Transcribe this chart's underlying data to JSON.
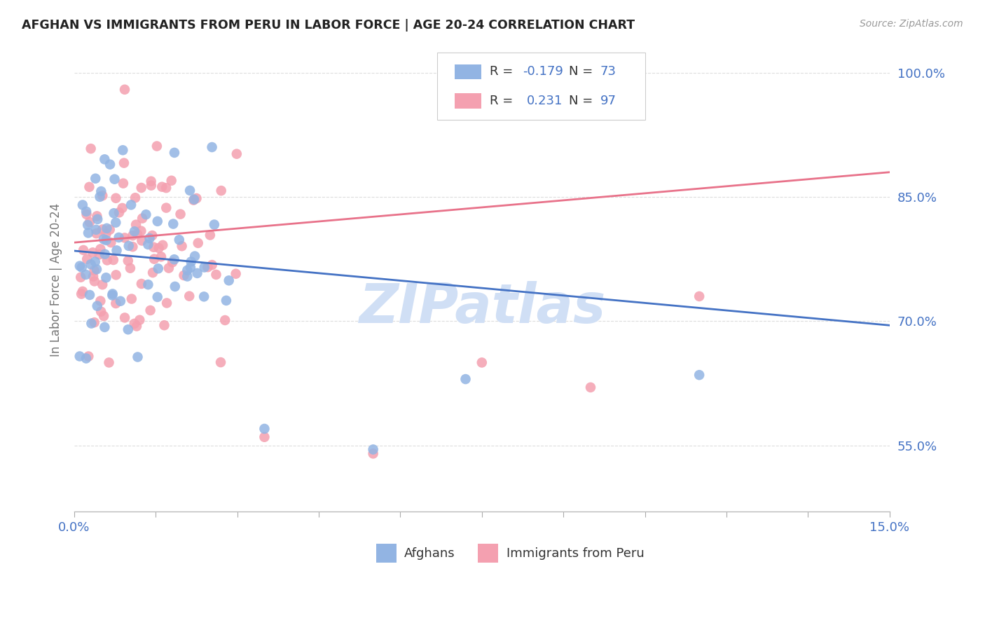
{
  "title": "AFGHAN VS IMMIGRANTS FROM PERU IN LABOR FORCE | AGE 20-24 CORRELATION CHART",
  "source": "Source: ZipAtlas.com",
  "ylabel": "In Labor Force | Age 20-24",
  "xlim": [
    0.0,
    0.15
  ],
  "ylim": [
    0.47,
    1.03
  ],
  "yticks": [
    0.55,
    0.7,
    0.85,
    1.0
  ],
  "ytick_labels": [
    "55.0%",
    "70.0%",
    "85.0%",
    "100.0%"
  ],
  "afghans_color": "#92b4e3",
  "peru_color": "#f4a0b0",
  "afghan_line_color": "#4472c4",
  "peru_line_color": "#e8728a",
  "R_afghan": -0.179,
  "N_afghan": 73,
  "R_peru": 0.231,
  "N_peru": 97,
  "watermark": "ZIPatlas",
  "watermark_color": "#d0dff5",
  "background_color": "#ffffff",
  "grid_color": "#dddddd",
  "title_color": "#222222",
  "source_color": "#999999",
  "yticklabel_color": "#4472c4",
  "xticklabel_color": "#4472c4",
  "legend_label_color": "#333333",
  "legend_value_color": "#4472c4",
  "ylabel_color": "#777777",
  "blue_line_x0": 0.0,
  "blue_line_y0": 0.785,
  "blue_line_x1": 0.15,
  "blue_line_y1": 0.695,
  "pink_line_x0": 0.0,
  "pink_line_y0": 0.795,
  "pink_line_x1": 0.15,
  "pink_line_y1": 0.88
}
